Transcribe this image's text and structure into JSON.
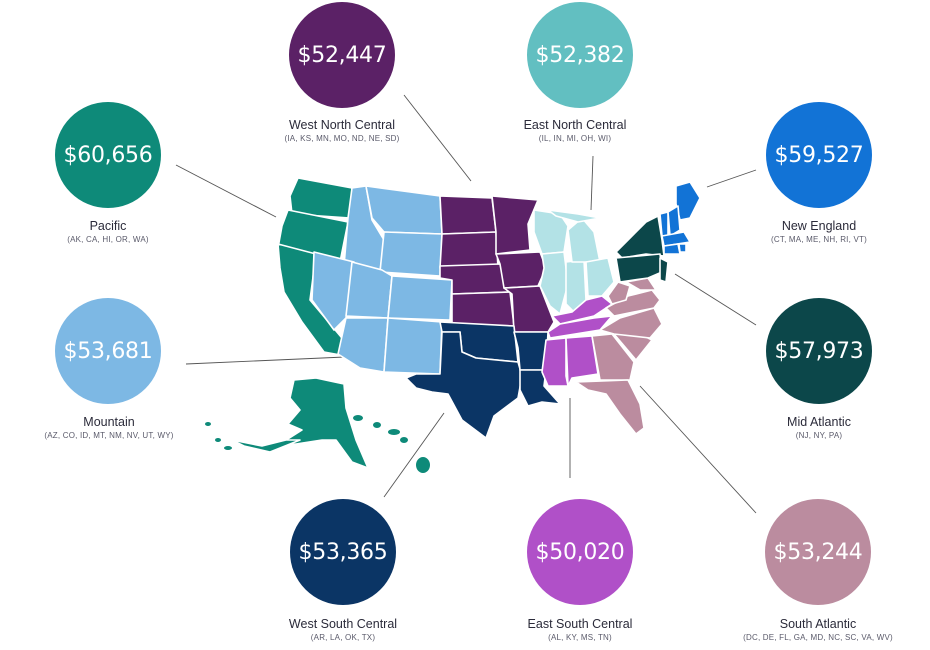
{
  "colors": {
    "pacific": "#0e8a79",
    "mountain": "#7db8e4",
    "west_north_central": "#5b2166",
    "east_north_central": "#62bfc1",
    "new_england": "#1273d6",
    "mid_atlantic": "#0c474a",
    "west_south_central": "#0b3565",
    "east_south_central": "#b050c8",
    "south_atlantic": "#bb8c9f",
    "east_north_central_map": "#b3e2e6",
    "connector": "#555555"
  },
  "regions": [
    {
      "key": "west_north_central",
      "amount": "$52,447",
      "name": "West North Central",
      "states": "(IA, KS, MN, MO, ND, NE, SD)"
    },
    {
      "key": "east_north_central",
      "amount": "$52,382",
      "name": "East North Central",
      "states": "(IL, IN, MI, OH, WI)"
    },
    {
      "key": "pacific",
      "amount": "$60,656",
      "name": "Pacific",
      "states": "(AK, CA, HI, OR, WA)"
    },
    {
      "key": "new_england",
      "amount": "$59,527",
      "name": "New England",
      "states": "(CT, MA, ME, NH, RI, VT)"
    },
    {
      "key": "mountain",
      "amount": "$53,681",
      "name": "Mountain",
      "states": "(AZ, CO, ID, MT, NM, NV, UT, WY)"
    },
    {
      "key": "mid_atlantic",
      "amount": "$57,973",
      "name": "Mid Atlantic",
      "states": "(NJ, NY, PA)"
    },
    {
      "key": "west_south_central",
      "amount": "$53,365",
      "name": "West South Central",
      "states": "(AR, LA, OK, TX)"
    },
    {
      "key": "east_south_central",
      "amount": "$50,020",
      "name": "East South Central",
      "states": "(AL, KY, MS, TN)"
    },
    {
      "key": "south_atlantic",
      "amount": "$53,244",
      "name": "South Atlantic",
      "states": "(DC, DE, FL, GA, MD, NC, SC, VA, WV)"
    }
  ]
}
